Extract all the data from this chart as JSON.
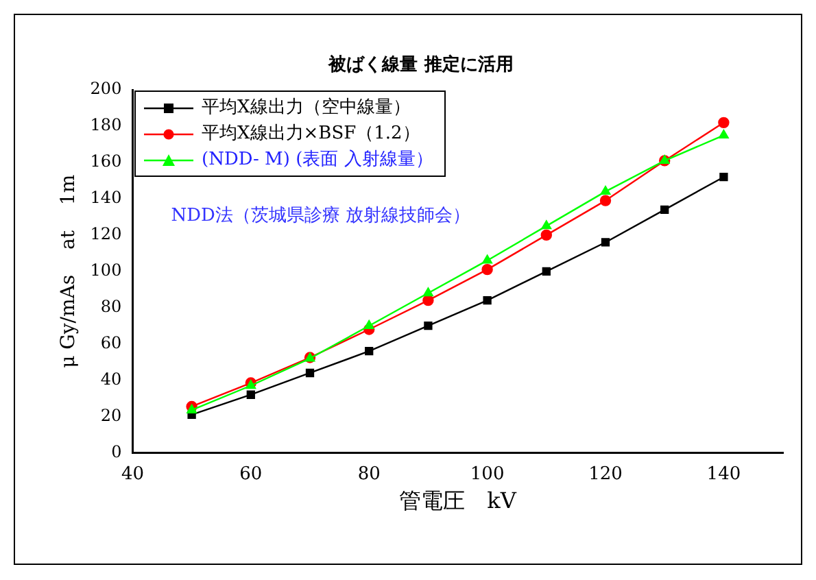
{
  "chart_data": {
    "type": "line",
    "title": "被ばく線量 推定に活用",
    "xlabel": "管電圧　kV",
    "ylabel": "μ Gy/mAs　 at　 1m",
    "x": [
      50,
      60,
      70,
      80,
      90,
      100,
      110,
      120,
      130,
      140
    ],
    "series": [
      {
        "name": "平均X線出力（空中線量）",
        "color": "#000000",
        "marker": "square",
        "values": [
          21,
          32,
          44,
          56,
          70,
          84,
          100,
          116,
          134,
          152
        ]
      },
      {
        "name": "平均X線出力×BSF（1.2）",
        "color": "#ff0000",
        "marker": "circle",
        "values": [
          25.5,
          38.5,
          52.5,
          68,
          84,
          101,
          120,
          139,
          161,
          182
        ]
      },
      {
        "name": "(NDD- M) (表面 入射線量）",
        "color": "#00ff00",
        "marker": "triangle",
        "values": [
          23.5,
          37,
          52,
          70,
          88,
          106,
          125,
          144,
          161,
          175
        ]
      }
    ],
    "annotations": [
      "NDD法（茨城県診療 放射線技師会）"
    ],
    "xlim": [
      40,
      150
    ],
    "xticks": [
      40,
      60,
      80,
      100,
      120,
      140
    ],
    "ylim": [
      0,
      200
    ],
    "yticks": [
      0,
      20,
      40,
      60,
      80,
      100,
      120,
      140,
      160,
      180,
      200
    ],
    "grid": false,
    "legend": "top left"
  }
}
